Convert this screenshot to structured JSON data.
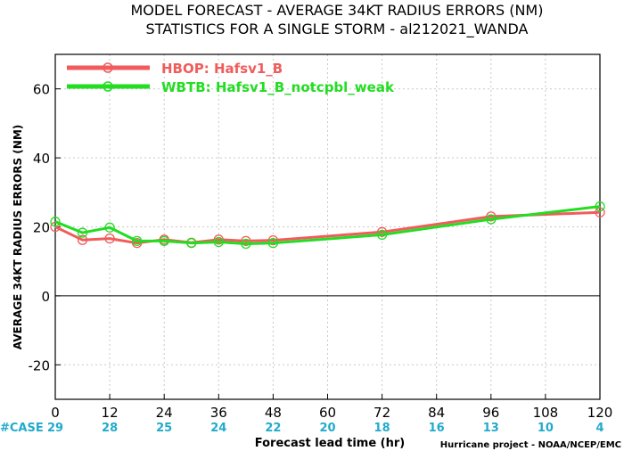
{
  "chart_data": {
    "type": "line",
    "title": "MODEL FORECAST - AVERAGE 34KT RADIUS ERRORS (NM)",
    "subtitle": "STATISTICS FOR A SINGLE STORM - al212021_WANDA",
    "xlabel": "Forecast lead time (hr)",
    "ylabel": "AVERAGE 34KT RADIUS ERRORS (NM)",
    "xlim": [
      0,
      120
    ],
    "ylim": [
      -30,
      70
    ],
    "xticks": [
      0,
      12,
      24,
      36,
      48,
      60,
      72,
      84,
      96,
      108,
      120
    ],
    "yticks": [
      -20,
      0,
      20,
      40,
      60
    ],
    "grid": true,
    "legend_position": "top-left",
    "case_label": "#CASE",
    "cases": [
      {
        "x": 0,
        "n": "29"
      },
      {
        "x": 12,
        "n": "28"
      },
      {
        "x": 24,
        "n": "25"
      },
      {
        "x": 36,
        "n": "24"
      },
      {
        "x": 48,
        "n": "22"
      },
      {
        "x": 60,
        "n": "20"
      },
      {
        "x": 72,
        "n": "18"
      },
      {
        "x": 84,
        "n": "16"
      },
      {
        "x": 96,
        "n": "13"
      },
      {
        "x": 108,
        "n": "10"
      },
      {
        "x": 120,
        "n": "4"
      }
    ],
    "credit": "Hurricane project - NOAA/NCEP/EMC",
    "series": [
      {
        "name": "HBOP: Hafsv1_B",
        "color": "#f25b5b",
        "x": [
          0,
          6,
          12,
          18,
          24,
          30,
          36,
          42,
          48,
          72,
          96,
          120
        ],
        "y": [
          20,
          16.2,
          16.6,
          15.3,
          16.3,
          15.4,
          16.3,
          15.9,
          16.1,
          18.5,
          23,
          24.2
        ]
      },
      {
        "name": "WBTB: Hafsv1_B_notcpbl_weak",
        "color": "#22dd22",
        "x": [
          0,
          6,
          12,
          18,
          24,
          30,
          36,
          42,
          48,
          72,
          96,
          120
        ],
        "y": [
          21.5,
          18.3,
          19.8,
          15.9,
          15.9,
          15.3,
          15.6,
          15.1,
          15.3,
          17.7,
          22.2,
          25.9
        ]
      }
    ],
    "colors": {
      "case_text": "#22aacc",
      "grid": "#c8c8c8"
    }
  }
}
